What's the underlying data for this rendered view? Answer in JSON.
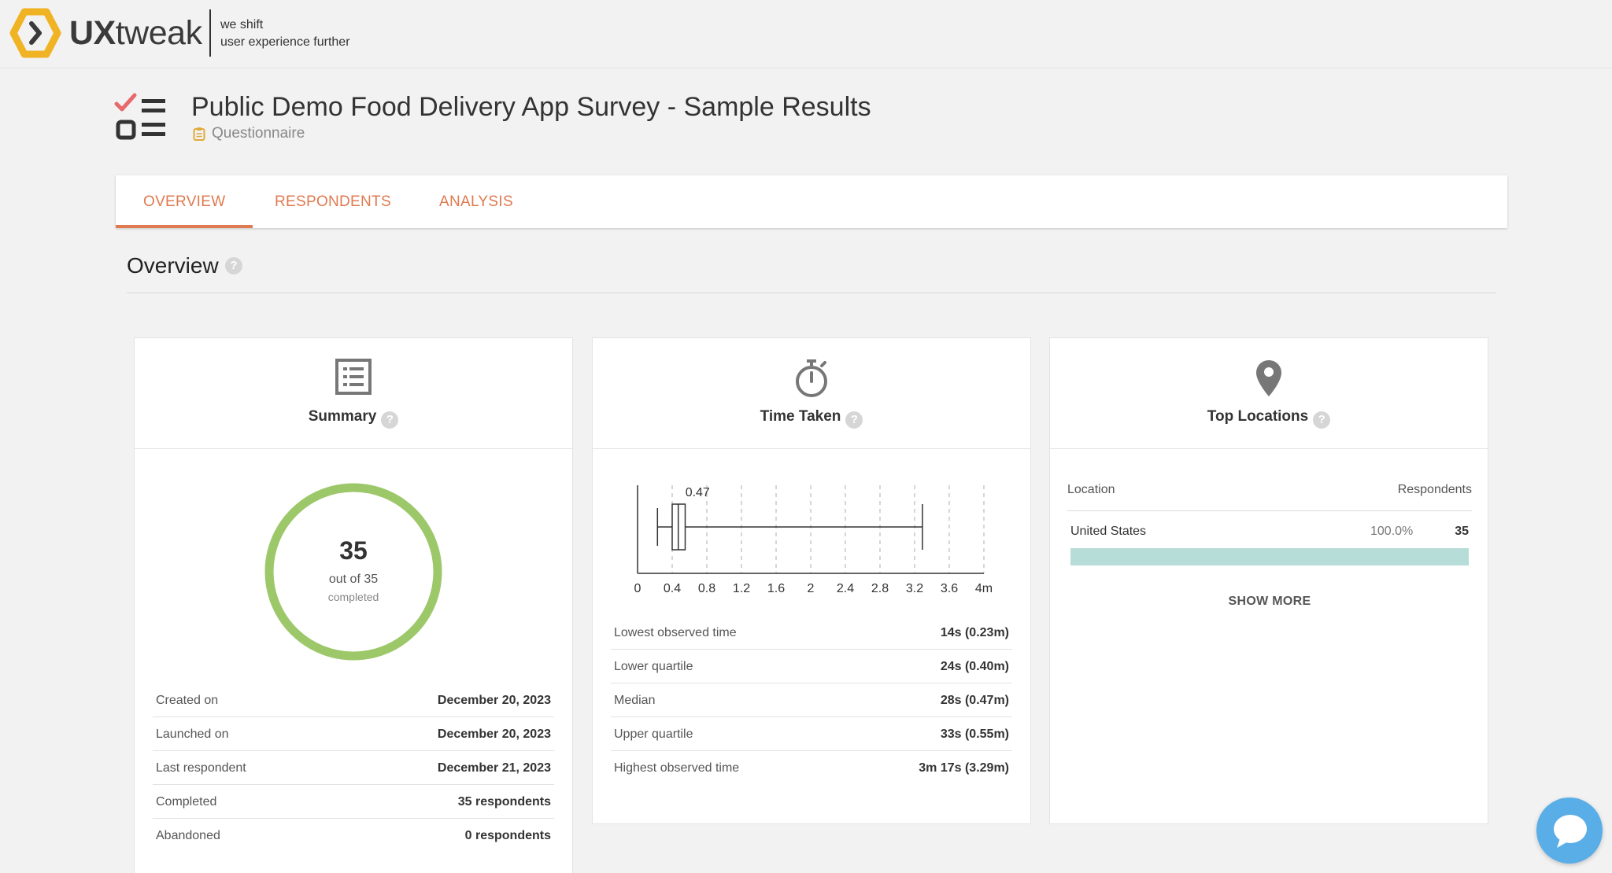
{
  "brand": {
    "name_bold": "UX",
    "name_rest": "tweak",
    "tagline_line1": "we shift",
    "tagline_line2": "user experience further"
  },
  "page": {
    "title": "Public Demo Food Delivery App Survey - Sample Results",
    "subtitle": "Questionnaire"
  },
  "tabs": [
    {
      "label": "OVERVIEW",
      "active": true
    },
    {
      "label": "RESPONDENTS",
      "active": false
    },
    {
      "label": "ANALYSIS",
      "active": false
    }
  ],
  "overview": {
    "title": "Overview",
    "help": "?"
  },
  "summary": {
    "title": "Summary",
    "completed_count": "35",
    "completed_text": "out of 35",
    "completed_label": "completed",
    "completion_fraction": 1.0,
    "rows": [
      {
        "label": "Created on",
        "value": "December 20, 2023"
      },
      {
        "label": "Launched on",
        "value": "December 20, 2023"
      },
      {
        "label": "Last respondent",
        "value": "December 21, 2023"
      },
      {
        "label": "Completed",
        "value": "35 respondents"
      },
      {
        "label": "Abandoned",
        "value": "0 respondents"
      }
    ]
  },
  "time_taken": {
    "title": "Time Taken",
    "chart_data": {
      "type": "boxplot",
      "x_ticks": [
        "0",
        "0.4",
        "0.8",
        "1.2",
        "1.6",
        "2",
        "2.4",
        "2.8",
        "3.2",
        "3.6",
        "4m"
      ],
      "xlim": [
        0,
        4
      ],
      "min": 0.23,
      "q1": 0.4,
      "median": 0.47,
      "q3": 0.55,
      "max": 3.29,
      "median_label": "0.47",
      "grid": true
    },
    "rows": [
      {
        "label": "Lowest observed time",
        "value": "14s (0.23m)"
      },
      {
        "label": "Lower quartile",
        "value": "24s (0.40m)"
      },
      {
        "label": "Median",
        "value": "28s (0.47m)"
      },
      {
        "label": "Upper quartile",
        "value": "33s (0.55m)"
      },
      {
        "label": "Highest observed time",
        "value": "3m 17s (3.29m)"
      }
    ]
  },
  "locations": {
    "title": "Top Locations",
    "col_location": "Location",
    "col_respondents": "Respondents",
    "items": [
      {
        "name": "United States",
        "percent": "100.0%",
        "count": "35",
        "fraction": 1.0
      }
    ],
    "show_more": "SHOW MORE"
  },
  "colors": {
    "accent": "#e07a50",
    "donut": "#9dc86a",
    "bar": "#b7ddd8",
    "logo": "#f0b323",
    "chat": "#5aaee8"
  }
}
